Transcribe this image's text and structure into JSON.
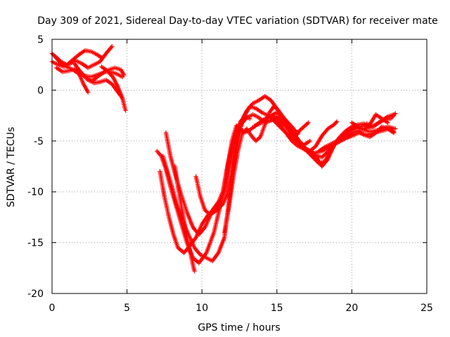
{
  "chart_data": {
    "type": "scatter",
    "title": "Day 309 of 2021, Sidereal Day-to-day VTEC variation (SDTVAR) for receiver mate",
    "xlabel": "GPS time / hours",
    "ylabel": "SDTVAR / TECUs",
    "xlim": [
      0,
      25
    ],
    "ylim": [
      -20,
      5
    ],
    "xticks": [
      "0",
      "5",
      "10",
      "15",
      "20",
      "25"
    ],
    "yticks": [
      "5",
      "0",
      "-5",
      "-10",
      "-15",
      "-20"
    ],
    "grid": true,
    "marker": "plus",
    "color": "#ff0000",
    "series": [
      {
        "x": [
          0.0,
          0.3,
          0.6,
          1.0,
          1.4,
          1.8,
          2.2,
          2.6,
          3.0,
          3.3
        ],
        "y": [
          3.6,
          3.2,
          2.8,
          2.5,
          3.0,
          3.5,
          3.9,
          3.8,
          3.5,
          3.2
        ]
      },
      {
        "x": [
          0.0,
          0.4,
          0.8,
          1.2,
          1.6,
          2.0,
          2.4,
          2.8,
          3.2,
          3.6,
          4.0
        ],
        "y": [
          2.8,
          2.5,
          2.3,
          2.6,
          2.9,
          2.6,
          2.2,
          2.5,
          2.8,
          3.6,
          4.3
        ]
      },
      {
        "x": [
          0.2,
          0.6,
          1.0,
          1.4,
          1.8,
          2.2,
          2.6,
          3.0,
          3.4,
          3.8,
          4.2,
          4.6,
          4.8
        ],
        "y": [
          3.3,
          2.6,
          2.3,
          2.0,
          1.6,
          1.4,
          1.3,
          1.5,
          1.7,
          2.0,
          2.2,
          2.0,
          1.5
        ]
      },
      {
        "x": [
          1.5,
          1.9,
          2.3,
          2.7,
          3.1,
          3.5,
          3.9,
          4.3,
          4.7
        ],
        "y": [
          2.6,
          1.8,
          1.2,
          0.9,
          1.4,
          1.8,
          1.8,
          1.6,
          1.3
        ]
      },
      {
        "x": [
          0.3,
          0.7,
          1.1,
          1.6,
          2.0,
          2.4,
          2.8,
          3.2,
          3.6,
          4.0,
          4.4,
          4.7
        ],
        "y": [
          2.2,
          1.8,
          1.9,
          2.1,
          1.6,
          1.0,
          0.7,
          0.8,
          1.0,
          0.6,
          -0.2,
          -0.8
        ]
      },
      {
        "x": [
          1.8,
          2.1,
          2.4
        ],
        "y": [
          1.6,
          0.6,
          -0.2
        ]
      },
      {
        "x": [
          3.3,
          3.7,
          4.1,
          4.4,
          4.7,
          4.9
        ],
        "y": [
          2.3,
          1.9,
          1.2,
          0.3,
          -0.8,
          -2.0
        ]
      },
      {
        "x": [
          7.0,
          7.3,
          7.6,
          7.9,
          8.2,
          8.6,
          9.0,
          9.4,
          9.8,
          10.3,
          10.8,
          11.2,
          11.6,
          12.0,
          12.3,
          12.6,
          12.8,
          13.1,
          13.5,
          14.0,
          14.5,
          15.0,
          15.6,
          16.2,
          16.8,
          17.4,
          18.0,
          18.6,
          19.1,
          19.6,
          20.1,
          20.6,
          21.2,
          21.8,
          22.4,
          22.9
        ],
        "y": [
          -6.0,
          -6.5,
          -7.8,
          -9.5,
          -11.0,
          -13.0,
          -15.0,
          -16.5,
          -17.0,
          -16.0,
          -14.0,
          -11.5,
          -8.5,
          -5.0,
          -3.5,
          -3.8,
          -4.2,
          -4.0,
          -3.6,
          -3.0,
          -2.6,
          -2.8,
          -3.6,
          -4.8,
          -5.8,
          -6.3,
          -6.6,
          -5.8,
          -4.8,
          -4.1,
          -3.6,
          -3.8,
          -4.1,
          -3.9,
          -3.6,
          -3.8
        ]
      },
      {
        "x": [
          7.2,
          7.5,
          7.8,
          8.1,
          8.4,
          8.8,
          9.2,
          9.6,
          10.0,
          10.4,
          10.8,
          11.2,
          11.5,
          11.8,
          12.1,
          12.4,
          12.7,
          13.0,
          13.4,
          13.8,
          14.2,
          14.6,
          15.0,
          15.4,
          15.8,
          16.2,
          16.6,
          17.0,
          17.5,
          18.0,
          18.5,
          19.0,
          19.5,
          20.0,
          20.5,
          21.0,
          21.5,
          22.0,
          22.5,
          22.8
        ],
        "y": [
          -8.0,
          -10.5,
          -12.5,
          -14.2,
          -15.5,
          -16.0,
          -15.3,
          -14.5,
          -13.2,
          -12.3,
          -11.8,
          -11.0,
          -10.0,
          -8.0,
          -5.5,
          -4.0,
          -3.2,
          -2.7,
          -2.4,
          -2.7,
          -3.2,
          -3.0,
          -2.6,
          -3.1,
          -3.7,
          -4.6,
          -5.4,
          -5.8,
          -6.2,
          -6.0,
          -5.6,
          -5.2,
          -4.8,
          -4.4,
          -4.2,
          -4.4,
          -4.2,
          -4.0,
          -3.8,
          -4.1
        ]
      },
      {
        "x": [
          7.6,
          7.9,
          8.2,
          8.6,
          9.0,
          9.4,
          9.8,
          10.2,
          10.6,
          11.0,
          11.4,
          11.7,
          12.0,
          12.3,
          12.6,
          13.0,
          13.4,
          13.8,
          14.2,
          14.6,
          15.0,
          15.4,
          15.8,
          16.2,
          16.6,
          17.0,
          17.4,
          17.8,
          18.2,
          18.6,
          19.0,
          19.4,
          19.8,
          20.2,
          20.6,
          21.0,
          21.4,
          21.8,
          22.2,
          22.6,
          22.9
        ],
        "y": [
          -4.2,
          -6.5,
          -8.2,
          -10.2,
          -12.0,
          -13.5,
          -14.2,
          -13.5,
          -12.2,
          -11.8,
          -11.2,
          -10.2,
          -8.0,
          -5.0,
          -3.2,
          -2.0,
          -1.3,
          -1.0,
          -0.6,
          -1.0,
          -1.8,
          -2.6,
          -3.4,
          -4.4,
          -5.2,
          -6.0,
          -6.6,
          -7.2,
          -7.0,
          -6.0,
          -5.0,
          -4.6,
          -4.1,
          -3.8,
          -3.6,
          -3.3,
          -3.6,
          -3.2,
          -2.9,
          -2.8,
          -2.3
        ]
      },
      {
        "x": [
          7.4,
          7.7,
          8.0,
          8.3,
          8.7,
          9.1,
          9.5,
          9.9,
          10.3,
          10.7,
          11.1,
          11.5,
          11.8,
          12.1,
          12.4,
          12.8,
          13.2,
          13.6,
          14.0,
          14.4,
          14.8,
          15.2,
          15.6,
          16.0,
          16.4,
          16.8,
          17.2,
          17.6,
          18.0,
          18.4,
          18.8,
          19.2,
          19.6,
          20.0,
          20.4,
          20.8,
          21.2,
          21.6,
          22.0,
          22.4,
          22.8
        ],
        "y": [
          -6.5,
          -8.0,
          -9.5,
          -11.2,
          -12.8,
          -14.2,
          -15.5,
          -16.2,
          -16.5,
          -16.8,
          -16.0,
          -14.5,
          -11.0,
          -7.5,
          -4.6,
          -2.6,
          -1.6,
          -1.8,
          -2.2,
          -2.5,
          -3.0,
          -3.6,
          -4.2,
          -5.0,
          -5.5,
          -5.8,
          -6.0,
          -6.5,
          -7.5,
          -6.8,
          -5.4,
          -4.6,
          -4.0,
          -3.6,
          -3.4,
          -3.3,
          -3.7,
          -3.4,
          -3.0,
          -2.6,
          -2.4
        ]
      },
      {
        "x": [
          8.2,
          8.4,
          8.7,
          9.0,
          9.3,
          9.5
        ],
        "y": [
          -7.5,
          -9.5,
          -12.0,
          -14.5,
          -16.5,
          -17.8
        ]
      },
      {
        "x": [
          9.6,
          9.9,
          10.2,
          10.5,
          10.8,
          11.1,
          11.4,
          11.7,
          12.0,
          12.3,
          12.6,
          12.9,
          13.2
        ],
        "y": [
          -8.5,
          -10.5,
          -11.8,
          -12.2,
          -11.6,
          -11.0,
          -10.0,
          -7.5,
          -5.5,
          -4.0,
          -3.0,
          -2.6,
          -2.8
        ]
      },
      {
        "x": [
          11.5,
          11.8,
          12.1,
          12.4,
          12.7,
          13.0,
          13.3,
          13.6,
          13.9,
          14.2,
          14.5,
          14.8,
          15.1
        ],
        "y": [
          -14.0,
          -11.5,
          -8.5,
          -6.0,
          -4.2,
          -3.8,
          -4.5,
          -5.0,
          -4.6,
          -3.4,
          -2.2,
          -1.6,
          -2.0
        ]
      },
      {
        "x": [
          13.5,
          14.0,
          14.5,
          15.0,
          15.5,
          16.0,
          16.4
        ],
        "y": [
          -3.5,
          -3.2,
          -2.6,
          -2.2,
          -2.8,
          -3.6,
          -4.3
        ]
      },
      {
        "x": [
          14.8,
          15.2,
          15.6,
          16.0,
          16.4,
          16.8,
          17.2
        ],
        "y": [
          -3.0,
          -3.4,
          -4.2,
          -4.8,
          -5.0,
          -5.4,
          -5.0
        ]
      },
      {
        "x": [
          16.2,
          16.5,
          16.8,
          17.1
        ],
        "y": [
          -4.6,
          -4.0,
          -3.6,
          -3.2
        ]
      },
      {
        "x": [
          17.2,
          17.6,
          18.0,
          18.4,
          18.8,
          19.0
        ],
        "y": [
          -6.0,
          -5.5,
          -4.5,
          -3.8,
          -3.4,
          -3.1
        ]
      },
      {
        "x": [
          17.8,
          18.2,
          18.6,
          19.0,
          19.4,
          19.8,
          20.2
        ],
        "y": [
          -6.0,
          -5.6,
          -5.3,
          -5.0,
          -4.8,
          -4.6,
          -4.4
        ]
      },
      {
        "x": [
          19.6,
          20.0,
          20.4,
          20.8,
          21.2,
          21.6,
          22.0,
          22.4,
          22.8
        ],
        "y": [
          -4.5,
          -4.2,
          -4.0,
          -4.4,
          -4.6,
          -4.2,
          -3.6,
          -3.8,
          -4.2
        ]
      },
      {
        "x": [
          20.0,
          20.4,
          20.8,
          21.2,
          21.6,
          22.0,
          22.4
        ],
        "y": [
          -3.2,
          -3.6,
          -3.9,
          -3.4,
          -2.4,
          -2.8,
          -3.2
        ]
      }
    ]
  }
}
